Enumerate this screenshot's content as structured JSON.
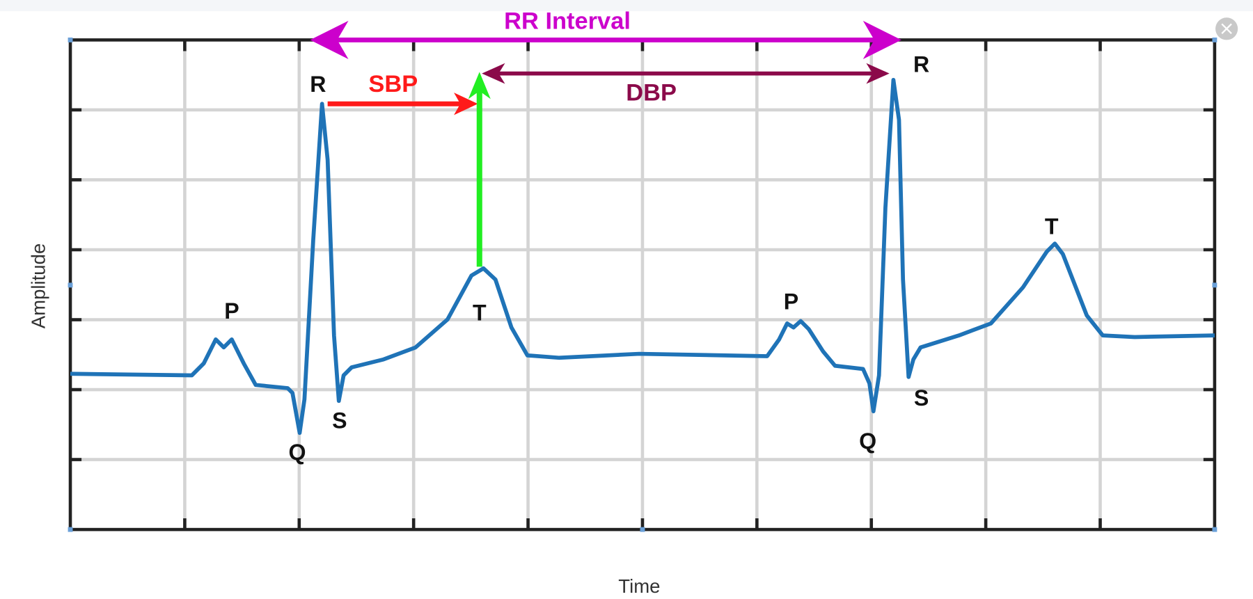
{
  "title": "RR Interval",
  "axes": {
    "y_label": "Amplitude",
    "x_label": "Time"
  },
  "annotations": {
    "sbp": "SBP",
    "dbp": "DBP"
  },
  "wave_labels": [
    "P",
    "R",
    "Q",
    "S",
    "T",
    "P",
    "R",
    "Q",
    "S",
    "T"
  ]
}
